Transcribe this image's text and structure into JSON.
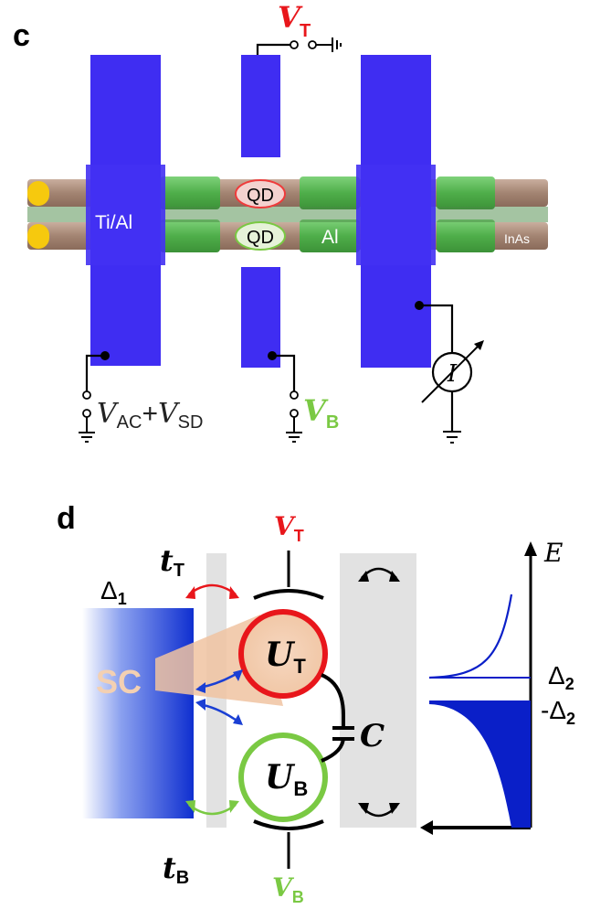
{
  "panel_c": {
    "letter": "c",
    "gate_top": {
      "symbol": "V",
      "subscript": "T",
      "color": "#e8161b"
    },
    "gate_bottom": {
      "symbol": "V",
      "subscript": "B",
      "color": "#7ac943"
    },
    "bias": {
      "v1": "V",
      "s1": "AC",
      "plus": "+",
      "v2": "V",
      "s2": "SD"
    },
    "lead_label": "Ti/Al",
    "qd_top": "QD",
    "qd_bottom": "QD",
    "shell_label": "Al",
    "wire_label": "InAs",
    "meter_symbol": "I",
    "colors": {
      "gate": "#3f2df2",
      "shell": "#5cb85c",
      "wire": "#a88a78",
      "contact": "#f6c90e"
    }
  },
  "panel_d": {
    "letter": "d",
    "gap_sc": {
      "symbol": "Δ",
      "subscript": "1"
    },
    "sc_label": "SC",
    "coupling_top": {
      "symbol": "t",
      "subscript": "T"
    },
    "coupling_bottom": {
      "symbol": "t",
      "subscript": "B"
    },
    "gate_top": {
      "symbol": "V",
      "subscript": "T"
    },
    "gate_bottom": {
      "symbol": "V",
      "subscript": "B"
    },
    "dot_top": {
      "symbol": "U",
      "subscript": "T"
    },
    "dot_bottom": {
      "symbol": "U",
      "subscript": "B"
    },
    "capacitor": "C",
    "energy_axis": "E",
    "gap_upper": {
      "symbol": "Δ",
      "subscript": "2"
    },
    "gap_lower": {
      "sign": "-",
      "symbol": "Δ",
      "subscript": "2"
    },
    "colors": {
      "sc": "#1a3fd4",
      "dot_top": "#e8161b",
      "dot_bottom": "#7ac943",
      "dos": "#0a1fc8"
    }
  }
}
